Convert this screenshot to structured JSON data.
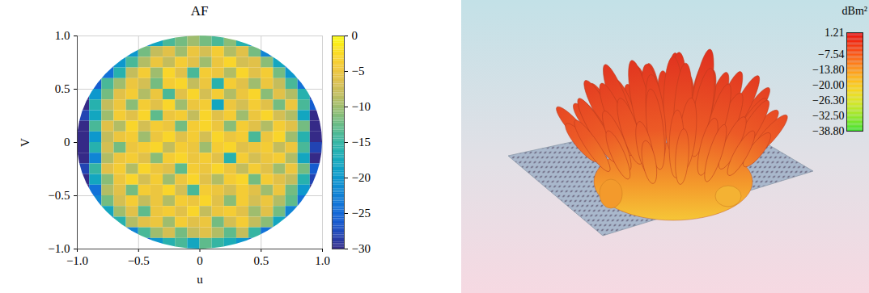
{
  "chart_data": [
    {
      "type": "heatmap",
      "title": "AF",
      "x_label": "u",
      "y_label": "V",
      "xlim": [
        -1,
        1
      ],
      "ylim": [
        -1,
        1
      ],
      "xticks": [
        {
          "value": -1,
          "label": "−1.0"
        },
        {
          "value": -0.5,
          "label": "−0.5"
        },
        0,
        0.5,
        {
          "value": 1,
          "label": "1.0"
        }
      ],
      "yticks": [
        {
          "value": -1,
          "label": "−1.0"
        },
        {
          "value": -0.5,
          "label": "−0.5"
        },
        0,
        0.5,
        {
          "value": 1,
          "label": "1.0"
        }
      ],
      "grid": true,
      "u": [
        -0.95,
        -0.85,
        -0.75,
        -0.65,
        -0.55,
        -0.45,
        -0.35,
        -0.25,
        -0.15,
        -0.05,
        0.05,
        0.15,
        0.25,
        0.35,
        0.45,
        0.55,
        0.65,
        0.75,
        0.85,
        0.95
      ],
      "v": [
        0.95,
        0.85,
        0.75,
        0.65,
        0.55,
        0.45,
        0.35,
        0.25,
        0.15,
        0.05,
        -0.05,
        -0.15,
        -0.25,
        -0.35,
        -0.45,
        -0.55,
        -0.65,
        -0.75,
        -0.85,
        -0.95
      ],
      "cells": [
        [
          null,
          null,
          null,
          null,
          null,
          -22,
          -18,
          -14,
          -12,
          -10,
          -12,
          -14,
          -11,
          -16,
          -20,
          null,
          null,
          null,
          null,
          null
        ],
        [
          null,
          null,
          null,
          null,
          -20,
          -12,
          -8,
          -6,
          -10,
          -5,
          -7,
          -4,
          -9,
          -6,
          -12,
          -22,
          null,
          null,
          null,
          null
        ],
        [
          null,
          null,
          -28,
          -20,
          -14,
          -9,
          -5,
          -8,
          -4,
          -6,
          -10,
          -5,
          -3,
          -7,
          -6,
          -11,
          -18,
          -26,
          null,
          null
        ],
        [
          null,
          null,
          -24,
          -16,
          -8,
          -4,
          -10,
          -3,
          -6,
          -14,
          -4,
          -5,
          -9,
          -3,
          -6,
          -4,
          -12,
          -20,
          null,
          null
        ],
        [
          null,
          -26,
          -14,
          -10,
          -5,
          -7,
          -12,
          -4,
          -3,
          -8,
          -5,
          -16,
          -4,
          -6,
          -10,
          -5,
          -8,
          -14,
          -24,
          null
        ],
        [
          -30,
          -20,
          -12,
          -6,
          -4,
          -9,
          -5,
          -14,
          -6,
          -3,
          -7,
          -4,
          -9,
          -5,
          -3,
          -11,
          -6,
          -9,
          -16,
          -28
        ],
        [
          -30,
          -16,
          -8,
          -5,
          -11,
          -4,
          -6,
          -3,
          -10,
          -5,
          -4,
          -18,
          -5,
          -7,
          -4,
          -6,
          -12,
          -5,
          -14,
          -26
        ],
        [
          -28,
          -18,
          -10,
          -4,
          -6,
          -3,
          -13,
          -5,
          -4,
          -8,
          -3,
          -6,
          -4,
          -10,
          -5,
          -3,
          -7,
          -9,
          -18,
          -30
        ],
        [
          -30,
          -14,
          -6,
          -9,
          -3,
          -7,
          -4,
          -5,
          -12,
          -4,
          -3,
          -5,
          -11,
          -4,
          -6,
          -9,
          -4,
          -6,
          -12,
          -30
        ],
        [
          -30,
          -20,
          -8,
          -5,
          -4,
          -10,
          -5,
          -3,
          -6,
          -4,
          -7,
          -3,
          -5,
          -4,
          -14,
          -5,
          -3,
          -10,
          -16,
          -30
        ],
        [
          -30,
          -16,
          -7,
          -12,
          -5,
          -4,
          -3,
          -8,
          -4,
          -5,
          -10,
          -4,
          -3,
          -6,
          -5,
          -4,
          -8,
          -5,
          -14,
          -28
        ],
        [
          -30,
          -22,
          -9,
          -5,
          -4,
          -6,
          -11,
          -4,
          -3,
          -5,
          -4,
          -6,
          -16,
          -4,
          -7,
          -5,
          -4,
          -9,
          -18,
          -30
        ],
        [
          -28,
          -15,
          -6,
          -4,
          -9,
          -3,
          -5,
          -6,
          -13,
          -4,
          -5,
          -3,
          -5,
          -8,
          -4,
          -6,
          -10,
          -5,
          -12,
          -26
        ],
        [
          -30,
          -18,
          -11,
          -5,
          -3,
          -7,
          -4,
          -10,
          -5,
          -3,
          -6,
          -9,
          -4,
          -3,
          -12,
          -4,
          -6,
          -8,
          -16,
          -28
        ],
        [
          -30,
          -24,
          -9,
          -6,
          -12,
          -4,
          -5,
          -3,
          -7,
          -14,
          -4,
          -5,
          -7,
          -4,
          -6,
          -10,
          -5,
          -12,
          -20,
          -30
        ],
        [
          null,
          -22,
          -12,
          -7,
          -4,
          -8,
          -5,
          -9,
          -4,
          -5,
          -3,
          -6,
          -11,
          -4,
          -7,
          -5,
          -9,
          -13,
          -24,
          null
        ],
        [
          null,
          null,
          -18,
          -10,
          -6,
          -13,
          -5,
          -4,
          -6,
          -3,
          -8,
          -5,
          -4,
          -6,
          -10,
          -6,
          -12,
          -22,
          null,
          null
        ],
        [
          null,
          null,
          -26,
          -16,
          -9,
          -6,
          -5,
          -10,
          -4,
          -6,
          -5,
          -12,
          -7,
          -4,
          -8,
          -11,
          -18,
          -27,
          null,
          null
        ],
        [
          null,
          null,
          null,
          null,
          -22,
          -14,
          -10,
          -7,
          -12,
          -8,
          -6,
          -9,
          -13,
          -8,
          -15,
          -24,
          null,
          null,
          null,
          null
        ],
        [
          null,
          null,
          null,
          null,
          null,
          -26,
          -20,
          -16,
          -14,
          -18,
          -13,
          -15,
          -17,
          -20,
          -25,
          null,
          null,
          null,
          null,
          null
        ]
      ],
      "colorbar": {
        "range": [
          -30,
          0
        ],
        "ticks": [
          0,
          {
            "value": -5,
            "label": "−5"
          },
          {
            "value": -10,
            "label": "−10"
          },
          {
            "value": -15,
            "label": "−15"
          },
          {
            "value": -20,
            "label": "−20"
          },
          {
            "value": -25,
            "label": "−25"
          },
          {
            "value": -30,
            "label": "−30"
          }
        ]
      }
    },
    {
      "type": "3d_pattern",
      "colorbar": {
        "label": "dBm²",
        "range": [
          -38.8,
          1.21
        ],
        "ticks": [
          1.21,
          {
            "value": -7.54,
            "label": "−7.54"
          },
          {
            "value": -13.8,
            "label": "−13.80"
          },
          {
            "value": -20,
            "label": "−20.00"
          },
          {
            "value": -26.3,
            "label": "−26.30"
          },
          {
            "value": -32.5,
            "label": "−32.50"
          },
          {
            "value": -38.8,
            "label": "−38.80"
          }
        ]
      }
    }
  ]
}
